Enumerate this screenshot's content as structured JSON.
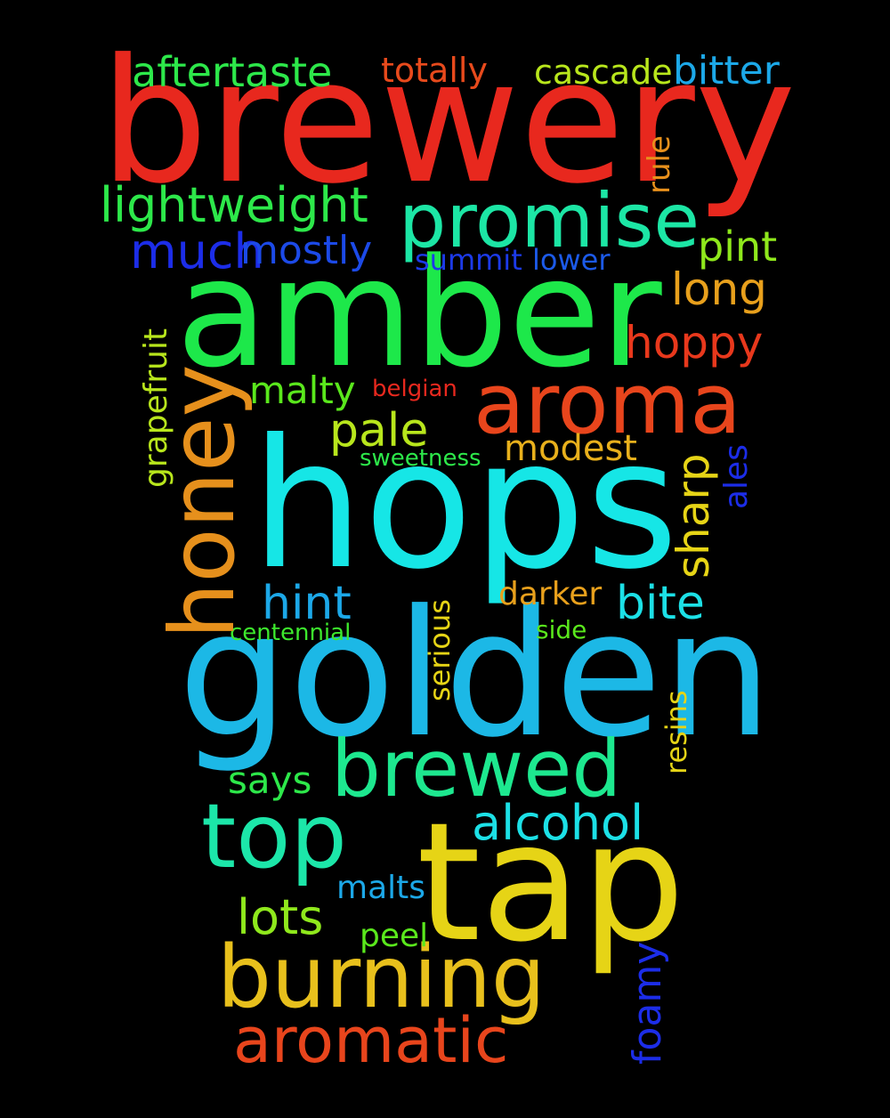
{
  "words": {
    "brewery": {
      "text": "brewery",
      "color": "#e8281e"
    },
    "amber": {
      "text": "amber",
      "color": "#1de84a"
    },
    "hops": {
      "text": "hops",
      "color": "#16e6e6"
    },
    "golden": {
      "text": "golden",
      "color": "#1cb8e6"
    },
    "tap": {
      "text": "tap",
      "color": "#e6d416"
    },
    "honey": {
      "text": "honey",
      "color": "#e6901c"
    },
    "aroma": {
      "text": "aroma",
      "color": "#e8451c"
    },
    "promise": {
      "text": "promise",
      "color": "#1ce6a5"
    },
    "brewed": {
      "text": "brewed",
      "color": "#1de88f"
    },
    "burning": {
      "text": "burning",
      "color": "#e8c01c"
    },
    "top": {
      "text": "top",
      "color": "#1ce6a9"
    },
    "aromatic": {
      "text": "aromatic",
      "color": "#e8451c"
    },
    "aftertaste": {
      "text": "aftertaste",
      "color": "#2de84a"
    },
    "totally": {
      "text": "totally",
      "color": "#e84a1c"
    },
    "cascade": {
      "text": "cascade",
      "color": "#b8e61c"
    },
    "bitter": {
      "text": "bitter",
      "color": "#1ca8e8"
    },
    "rule": {
      "text": "rule",
      "color": "#e8901c"
    },
    "lightweight": {
      "text": "lightweight",
      "color": "#2de84a"
    },
    "much": {
      "text": "much",
      "color": "#1c2de8"
    },
    "mostly": {
      "text": "mostly",
      "color": "#1c4ae8"
    },
    "summit": {
      "text": "summit",
      "color": "#1c3ae8"
    },
    "lower": {
      "text": "lower",
      "color": "#1c5ae8"
    },
    "pint": {
      "text": "pint",
      "color": "#8fe81c"
    },
    "long": {
      "text": "long",
      "color": "#e8a01c"
    },
    "hoppy": {
      "text": "hoppy",
      "color": "#e8381c"
    },
    "grapefruit": {
      "text": "grapefruit",
      "color": "#b8e61c"
    },
    "malty": {
      "text": "malty",
      "color": "#5ae81c"
    },
    "belgian": {
      "text": "belgian",
      "color": "#e8281e"
    },
    "pale": {
      "text": "pale",
      "color": "#b8e61c"
    },
    "modest": {
      "text": "modest",
      "color": "#e8b01c"
    },
    "sweetness": {
      "text": "sweetness",
      "color": "#2de84a"
    },
    "sharp": {
      "text": "sharp",
      "color": "#e6d416"
    },
    "ales": {
      "text": "ales",
      "color": "#1c2de8"
    },
    "hint": {
      "text": "hint",
      "color": "#1ca8e8"
    },
    "darker": {
      "text": "darker",
      "color": "#e8a01c"
    },
    "bite": {
      "text": "bite",
      "color": "#1ce0e6"
    },
    "serious": {
      "text": "serious",
      "color": "#e6d416"
    },
    "centennial": {
      "text": "centennial",
      "color": "#3de82d"
    },
    "side": {
      "text": "side",
      "color": "#5ae81c"
    },
    "resins": {
      "text": "resins",
      "color": "#e6d416"
    },
    "says": {
      "text": "says",
      "color": "#2de84a"
    },
    "alcohol": {
      "text": "alcohol",
      "color": "#1ce0e6"
    },
    "malts": {
      "text": "malts",
      "color": "#1ca8e8"
    },
    "lots": {
      "text": "lots",
      "color": "#8fe81c"
    },
    "peel": {
      "text": "peel",
      "color": "#5ae81c"
    },
    "foamy": {
      "text": "foamy",
      "color": "#1c2de8"
    }
  }
}
